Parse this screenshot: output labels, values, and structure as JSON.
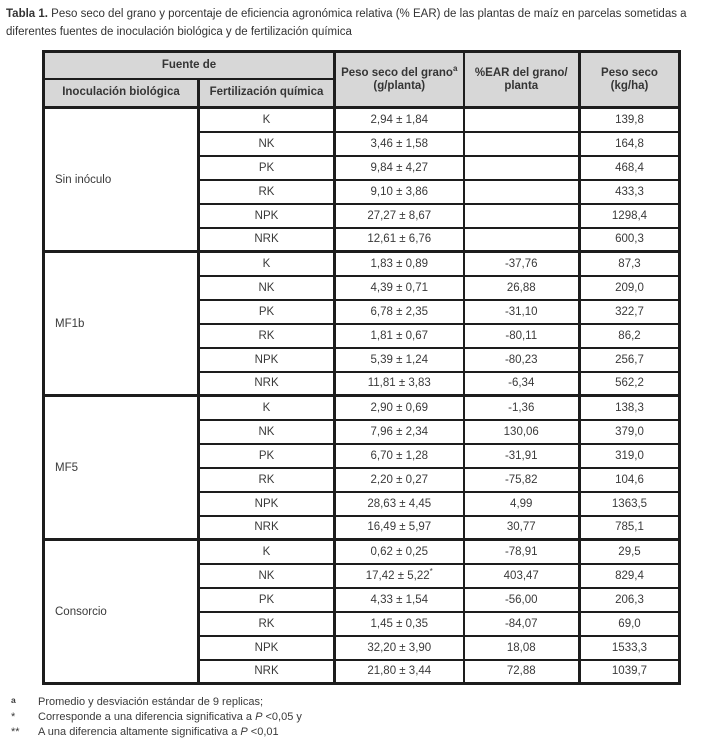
{
  "colors": {
    "border": "#1d1d1d",
    "header_bg": "#d7d7d7",
    "text": "#333333"
  },
  "caption": {
    "label": "Tabla 1.",
    "text": " Peso seco del grano y porcentaje de eficiencia agronómica relativa (% EAR) de las plantas de maíz en parcelas sometidas a diferentes fuentes de inoculación biológica y de fertilización química"
  },
  "table": {
    "header": {
      "fuente_de": "Fuente de",
      "inoculacion": "Inoculación biológica",
      "fertilizacion": "Fertilización química",
      "peso_grano_line1": "Peso seco del grano",
      "peso_grano_sup": "a",
      "peso_grano_line2": "(g/planta)",
      "ear_line1": "%EAR del grano/",
      "ear_line2": "planta",
      "peso_kgha_line1": "Peso seco",
      "peso_kgha_line2": "(kg/ha)"
    },
    "groups": [
      {
        "name": "Sin inóculo",
        "rows": [
          {
            "fert": "K",
            "peso": "2,94 ± 1,84",
            "peso_sup": "",
            "ear": "",
            "kgha": "139,8"
          },
          {
            "fert": "NK",
            "peso": "3,46 ± 1,58",
            "peso_sup": "",
            "ear": "",
            "kgha": "164,8"
          },
          {
            "fert": "PK",
            "peso": "9,84 ± 4,27",
            "peso_sup": "",
            "ear": "",
            "kgha": "468,4"
          },
          {
            "fert": "RK",
            "peso": "9,10 ± 3,86",
            "peso_sup": "",
            "ear": "",
            "kgha": "433,3"
          },
          {
            "fert": "NPK",
            "peso": "27,27 ± 8,67",
            "peso_sup": "",
            "ear": "",
            "kgha": "1298,4"
          },
          {
            "fert": "NRK",
            "peso": "12,61 ± 6,76",
            "peso_sup": "",
            "ear": "",
            "kgha": "600,3"
          }
        ]
      },
      {
        "name": "MF1b",
        "rows": [
          {
            "fert": "K",
            "peso": "1,83 ± 0,89",
            "peso_sup": "",
            "ear": "-37,76",
            "kgha": "87,3"
          },
          {
            "fert": "NK",
            "peso": "4,39 ± 0,71",
            "peso_sup": "",
            "ear": "26,88",
            "kgha": "209,0"
          },
          {
            "fert": "PK",
            "peso": "6,78 ± 2,35",
            "peso_sup": "",
            "ear": "-31,10",
            "kgha": "322,7"
          },
          {
            "fert": "RK",
            "peso": "1,81 ± 0,67",
            "peso_sup": "",
            "ear": "-80,11",
            "kgha": "86,2"
          },
          {
            "fert": "NPK",
            "peso": "5,39 ± 1,24",
            "peso_sup": "",
            "ear": "-80,23",
            "kgha": "256,7"
          },
          {
            "fert": "NRK",
            "peso": "11,81 ± 3,83",
            "peso_sup": "",
            "ear": "-6,34",
            "kgha": "562,2"
          }
        ]
      },
      {
        "name": "MF5",
        "rows": [
          {
            "fert": "K",
            "peso": "2,90 ± 0,69",
            "peso_sup": "",
            "ear": "-1,36",
            "kgha": "138,3"
          },
          {
            "fert": "NK",
            "peso": "7,96 ± 2,34",
            "peso_sup": "",
            "ear": "130,06",
            "kgha": "379,0"
          },
          {
            "fert": "PK",
            "peso": "6,70 ± 1,28",
            "peso_sup": "",
            "ear": "-31,91",
            "kgha": "319,0"
          },
          {
            "fert": "RK",
            "peso": "2,20 ± 0,27",
            "peso_sup": "",
            "ear": "-75,82",
            "kgha": "104,6"
          },
          {
            "fert": "NPK",
            "peso": "28,63 ± 4,45",
            "peso_sup": "",
            "ear": "4,99",
            "kgha": "1363,5"
          },
          {
            "fert": "NRK",
            "peso": "16,49 ± 5,97",
            "peso_sup": "",
            "ear": "30,77",
            "kgha": "785,1"
          }
        ]
      },
      {
        "name": "Consorcio",
        "rows": [
          {
            "fert": "K",
            "peso": "0,62 ± 0,25",
            "peso_sup": "",
            "ear": "-78,91",
            "kgha": "29,5"
          },
          {
            "fert": "NK",
            "peso": "17,42 ± 5,22",
            "peso_sup": "*",
            "ear": "403,47",
            "kgha": "829,4"
          },
          {
            "fert": "PK",
            "peso": "4,33 ± 1,54",
            "peso_sup": "",
            "ear": "-56,00",
            "kgha": "206,3"
          },
          {
            "fert": "RK",
            "peso": "1,45 ± 0,35",
            "peso_sup": "",
            "ear": "-84,07",
            "kgha": "69,0"
          },
          {
            "fert": "NPK",
            "peso": "32,20 ± 3,90",
            "peso_sup": "",
            "ear": "18,08",
            "kgha": "1533,3"
          },
          {
            "fert": "NRK",
            "peso": "21,80 ± 3,44",
            "peso_sup": "",
            "ear": "72,88",
            "kgha": "1039,7"
          }
        ]
      }
    ]
  },
  "footnotes": [
    {
      "marker": "a",
      "sup": true,
      "text": "Promedio y desviación estándar de 9 replicas;"
    },
    {
      "marker": "*",
      "sup": false,
      "text_before": "Corresponde a una diferencia significativa a ",
      "p": "P",
      "text_after": " <0,05 y"
    },
    {
      "marker": "**",
      "sup": false,
      "text_before": "A una diferencia altamente significativa a ",
      "p": "P",
      "text_after": " <0,01"
    }
  ]
}
